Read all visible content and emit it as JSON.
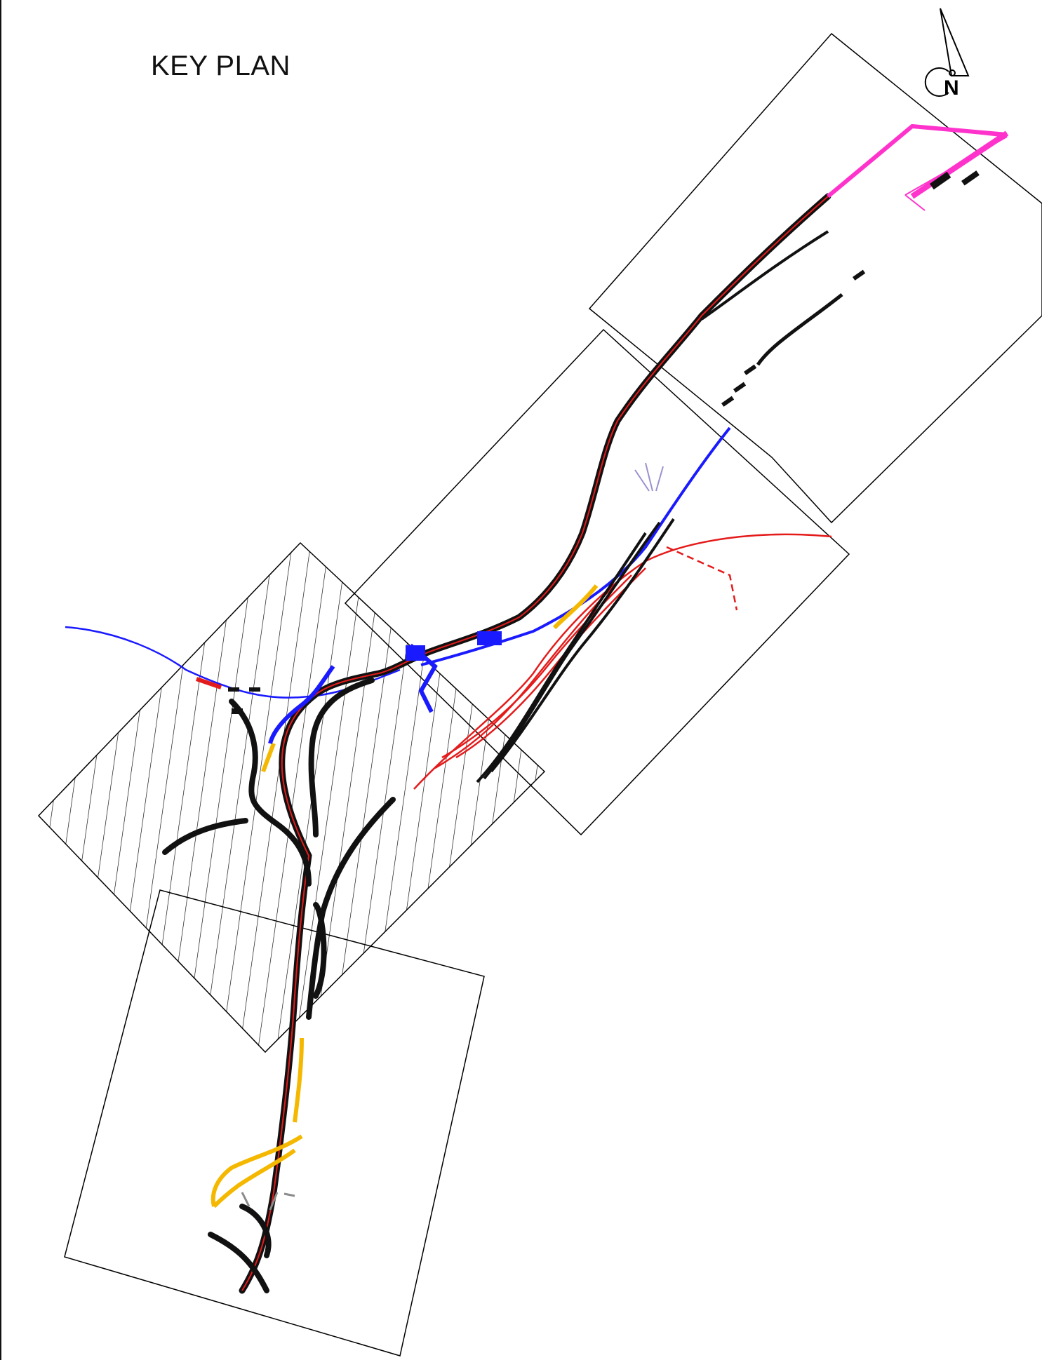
{
  "title": "KEY PLAN",
  "north_arrow": {
    "label": "N"
  },
  "colors": {
    "outline": "#000000",
    "route_black": "#111111",
    "route_red": "#e41b1b",
    "route_blue": "#1a1aff",
    "route_yellow": "#f5b800",
    "route_magenta": "#ff33cc",
    "route_grey": "#8a8a8a",
    "route_purple": "#9d8fd1"
  }
}
